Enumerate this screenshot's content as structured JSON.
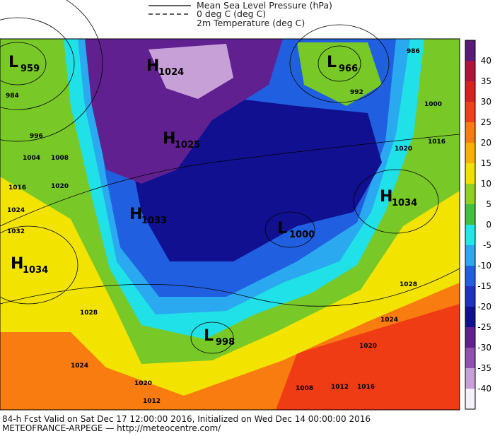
{
  "legend": [
    {
      "label": "Mean Sea Level Pressure (hPa)"
    },
    {
      "label": "0 deg C (deg C)"
    },
    {
      "label": "2m Temperature (deg C)"
    }
  ],
  "colorbar": {
    "ticks": [
      40,
      35,
      30,
      25,
      20,
      15,
      10,
      5,
      0,
      -5,
      -10,
      -15,
      -20,
      -25,
      -30,
      -35,
      -40
    ],
    "colors": [
      "#5a1a78",
      "#b0143c",
      "#d82020",
      "#f04018",
      "#f87c10",
      "#f8b000",
      "#f0e000",
      "#90d020",
      "#40c040",
      "#20e8e8",
      "#2aa8f0",
      "#2060e0",
      "#2030c0",
      "#101090",
      "#602090",
      "#9050b0",
      "#c8a0d8",
      "#f6f0fa"
    ]
  },
  "pressure_centers": [
    {
      "letter": "L",
      "value": "959"
    },
    {
      "letter": "H",
      "value": "1024"
    },
    {
      "letter": "L",
      "value": "966"
    },
    {
      "letter": "H",
      "value": "1025"
    },
    {
      "letter": "H",
      "value": "1033"
    },
    {
      "letter": "H",
      "value": "1034"
    },
    {
      "letter": "H",
      "value": "1034"
    },
    {
      "letter": "L",
      "value": "1000"
    },
    {
      "letter": "L",
      "value": "998"
    }
  ],
  "isobar_labels": [
    "984",
    "996",
    "1004",
    "1008",
    "1016",
    "1020",
    "1024",
    "1032",
    "1028",
    "1024",
    "1020",
    "1012",
    "992",
    "1000",
    "1016",
    "1020",
    "1028",
    "1024",
    "1020",
    "1016",
    "1012",
    "1008",
    "986"
  ],
  "footer": {
    "line1": "84-h Fcst Valid on Sat Dec 17 12:00:00 2016, Initialized on Wed Dec 14 00:00:00 2016",
    "line2": "METEOFRANCE-ARPEGE  — http://meteocentre.com/"
  }
}
